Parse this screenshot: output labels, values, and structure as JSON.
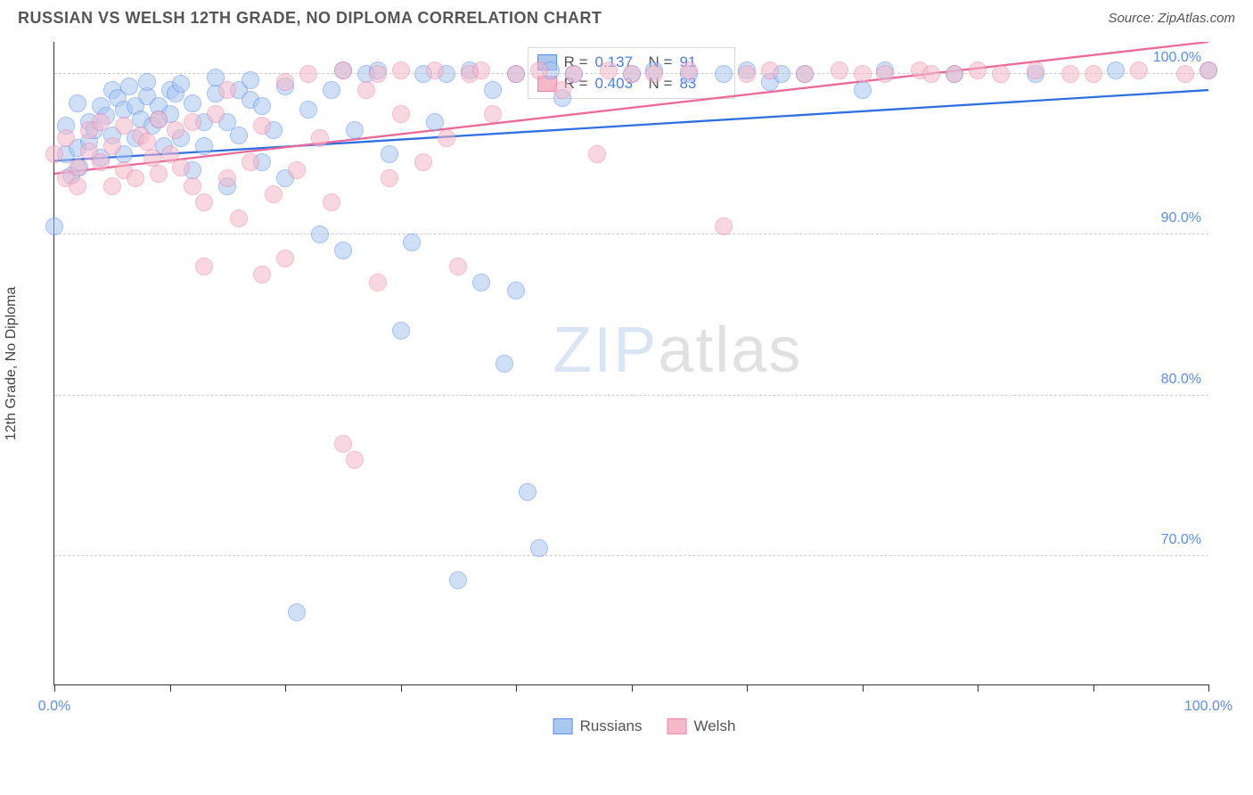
{
  "header": {
    "title": "RUSSIAN VS WELSH 12TH GRADE, NO DIPLOMA CORRELATION CHART",
    "source": "Source: ZipAtlas.com"
  },
  "chart": {
    "type": "scatter",
    "y_axis_label": "12th Grade, No Diploma",
    "xlim": [
      0,
      100
    ],
    "ylim": [
      62,
      102
    ],
    "x_ticks": [
      0,
      10,
      20,
      30,
      40,
      50,
      60,
      70,
      80,
      90,
      100
    ],
    "x_tick_labels": {
      "0": "0.0%",
      "100": "100.0%"
    },
    "y_gridlines": [
      70,
      80,
      90,
      100
    ],
    "y_tick_labels": {
      "70": "70.0%",
      "80": "80.0%",
      "90": "90.0%",
      "100": "100.0%"
    },
    "grid_color": "#cccccc",
    "background_color": "#ffffff",
    "point_radius": 10,
    "point_opacity": 0.55,
    "series": [
      {
        "name": "Russians",
        "fill": "#a9c7ef",
        "stroke": "#5b8def",
        "trend": {
          "y_at_x0": 94.6,
          "y_at_x100": 99.0,
          "color": "#2f6fe0",
          "width": 2.3
        },
        "stats": {
          "R": "0.137",
          "N": "91"
        },
        "points": [
          [
            0,
            90.5
          ],
          [
            1,
            95.0
          ],
          [
            1,
            96.8
          ],
          [
            1.5,
            93.7
          ],
          [
            2,
            95.4
          ],
          [
            2,
            98.2
          ],
          [
            2.2,
            94.2
          ],
          [
            3,
            97.0
          ],
          [
            3,
            95.8
          ],
          [
            3.5,
            96.5
          ],
          [
            4,
            98.0
          ],
          [
            4,
            94.8
          ],
          [
            4.5,
            97.4
          ],
          [
            5,
            99.0
          ],
          [
            5,
            96.2
          ],
          [
            5.5,
            98.5
          ],
          [
            6,
            97.8
          ],
          [
            6,
            95.0
          ],
          [
            6.5,
            99.2
          ],
          [
            7,
            98.0
          ],
          [
            7,
            96.0
          ],
          [
            7.5,
            97.2
          ],
          [
            8,
            98.6
          ],
          [
            8,
            99.5
          ],
          [
            8.5,
            96.8
          ],
          [
            9,
            98.0
          ],
          [
            9,
            97.2
          ],
          [
            9.5,
            95.5
          ],
          [
            10,
            99.0
          ],
          [
            10,
            97.5
          ],
          [
            10.5,
            98.8
          ],
          [
            11,
            96.0
          ],
          [
            11,
            99.4
          ],
          [
            12,
            94.0
          ],
          [
            12,
            98.2
          ],
          [
            13,
            97.0
          ],
          [
            13,
            95.5
          ],
          [
            14,
            98.8
          ],
          [
            14,
            99.8
          ],
          [
            15,
            97.0
          ],
          [
            15,
            93.0
          ],
          [
            16,
            99.0
          ],
          [
            16,
            96.2
          ],
          [
            17,
            98.4
          ],
          [
            17,
            99.6
          ],
          [
            18,
            94.5
          ],
          [
            18,
            98.0
          ],
          [
            19,
            96.5
          ],
          [
            20,
            99.2
          ],
          [
            20,
            93.5
          ],
          [
            21,
            66.5
          ],
          [
            22,
            97.8
          ],
          [
            23,
            90.0
          ],
          [
            24,
            99.0
          ],
          [
            25,
            100.2
          ],
          [
            25,
            89.0
          ],
          [
            26,
            96.5
          ],
          [
            27,
            100.0
          ],
          [
            28,
            100.2
          ],
          [
            29,
            95.0
          ],
          [
            30,
            84.0
          ],
          [
            31,
            89.5
          ],
          [
            32,
            100.0
          ],
          [
            33,
            97.0
          ],
          [
            34,
            100.0
          ],
          [
            35,
            68.5
          ],
          [
            36,
            100.2
          ],
          [
            37,
            87.0
          ],
          [
            38,
            99.0
          ],
          [
            39,
            82.0
          ],
          [
            40,
            86.5
          ],
          [
            40,
            100.0
          ],
          [
            41,
            74.0
          ],
          [
            42,
            70.5
          ],
          [
            43,
            100.2
          ],
          [
            44,
            98.5
          ],
          [
            45,
            100.0
          ],
          [
            50,
            100.0
          ],
          [
            52,
            100.2
          ],
          [
            55,
            100.0
          ],
          [
            58,
            100.0
          ],
          [
            60,
            100.2
          ],
          [
            62,
            99.5
          ],
          [
            63,
            100.0
          ],
          [
            65,
            100.0
          ],
          [
            70,
            99.0
          ],
          [
            72,
            100.2
          ],
          [
            78,
            100.0
          ],
          [
            85,
            100.0
          ],
          [
            92,
            100.2
          ],
          [
            100,
            100.2
          ]
        ]
      },
      {
        "name": "Welsh",
        "fill": "#f5b8c9",
        "stroke": "#ec87a8",
        "trend": {
          "y_at_x0": 93.8,
          "y_at_x100": 102.0,
          "color": "#ec6a98",
          "width": 2.3
        },
        "stats": {
          "R": "0.403",
          "N": "83"
        },
        "points": [
          [
            0,
            95.0
          ],
          [
            1,
            93.5
          ],
          [
            1,
            96.0
          ],
          [
            2,
            94.2
          ],
          [
            2,
            93.0
          ],
          [
            3,
            95.2
          ],
          [
            3,
            96.5
          ],
          [
            4,
            94.5
          ],
          [
            4,
            97.0
          ],
          [
            5,
            93.0
          ],
          [
            5,
            95.5
          ],
          [
            6,
            96.8
          ],
          [
            6,
            94.0
          ],
          [
            7,
            93.5
          ],
          [
            7.5,
            96.2
          ],
          [
            8,
            95.8
          ],
          [
            8.5,
            94.8
          ],
          [
            9,
            97.2
          ],
          [
            9,
            93.8
          ],
          [
            10,
            95.0
          ],
          [
            10.5,
            96.5
          ],
          [
            11,
            94.2
          ],
          [
            12,
            93.0
          ],
          [
            12,
            97.0
          ],
          [
            13,
            88.0
          ],
          [
            13,
            92.0
          ],
          [
            14,
            97.5
          ],
          [
            15,
            93.5
          ],
          [
            15,
            99.0
          ],
          [
            16,
            91.0
          ],
          [
            17,
            94.5
          ],
          [
            18,
            96.8
          ],
          [
            18,
            87.5
          ],
          [
            19,
            92.5
          ],
          [
            20,
            99.5
          ],
          [
            20,
            88.5
          ],
          [
            21,
            94.0
          ],
          [
            22,
            100.0
          ],
          [
            23,
            96.0
          ],
          [
            24,
            92.0
          ],
          [
            25,
            100.2
          ],
          [
            25,
            77.0
          ],
          [
            26,
            76.0
          ],
          [
            27,
            99.0
          ],
          [
            28,
            87.0
          ],
          [
            28,
            100.0
          ],
          [
            29,
            93.5
          ],
          [
            30,
            97.5
          ],
          [
            30,
            100.2
          ],
          [
            32,
            94.5
          ],
          [
            33,
            100.2
          ],
          [
            34,
            96.0
          ],
          [
            35,
            88.0
          ],
          [
            36,
            100.0
          ],
          [
            37,
            100.2
          ],
          [
            38,
            97.5
          ],
          [
            40,
            100.0
          ],
          [
            42,
            100.2
          ],
          [
            44,
            99.0
          ],
          [
            45,
            100.0
          ],
          [
            47,
            95.0
          ],
          [
            48,
            100.2
          ],
          [
            50,
            100.0
          ],
          [
            52,
            100.0
          ],
          [
            55,
            100.2
          ],
          [
            58,
            90.5
          ],
          [
            60,
            100.0
          ],
          [
            62,
            100.2
          ],
          [
            65,
            100.0
          ],
          [
            68,
            100.2
          ],
          [
            70,
            100.0
          ],
          [
            72,
            100.0
          ],
          [
            75,
            100.2
          ],
          [
            76,
            100.0
          ],
          [
            78,
            100.0
          ],
          [
            80,
            100.2
          ],
          [
            82,
            100.0
          ],
          [
            85,
            100.2
          ],
          [
            88,
            100.0
          ],
          [
            90,
            100.0
          ],
          [
            94,
            100.2
          ],
          [
            98,
            100.0
          ],
          [
            100,
            100.2
          ]
        ]
      }
    ],
    "legend": {
      "items": [
        {
          "label": "Russians",
          "fill": "#a9c7ef",
          "stroke": "#5b8def"
        },
        {
          "label": "Welsh",
          "fill": "#f5b8c9",
          "stroke": "#ec87a8"
        }
      ]
    },
    "watermark": {
      "part1": "ZIP",
      "part2": "atlas"
    }
  }
}
